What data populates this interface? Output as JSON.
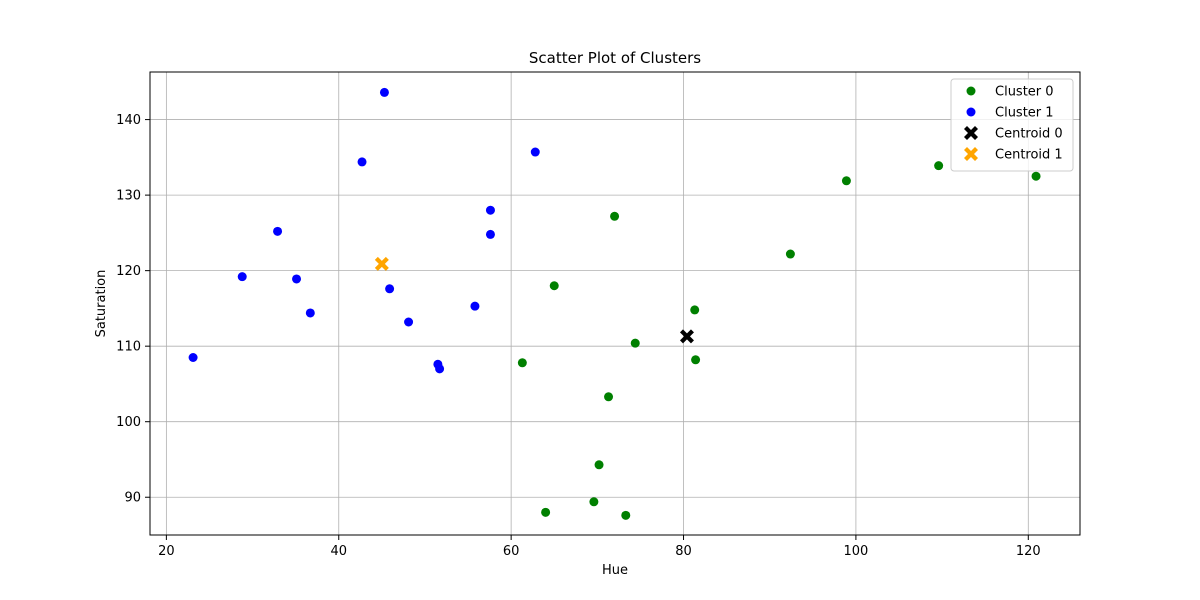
{
  "chart_data": {
    "type": "scatter",
    "title": "Scatter Plot of Clusters",
    "xlabel": "Hue",
    "ylabel": "Saturation",
    "xlim": [
      18.1,
      126.0
    ],
    "ylim": [
      85.0,
      146.3
    ],
    "xticks": [
      20,
      40,
      60,
      80,
      100,
      120
    ],
    "yticks": [
      90,
      100,
      110,
      120,
      130,
      140
    ],
    "grid": true,
    "legend_position": "top-right",
    "series": [
      {
        "name": "Cluster 0",
        "color": "#008000",
        "marker": "circle",
        "points": [
          [
            64.0,
            88.0
          ],
          [
            69.6,
            89.4
          ],
          [
            73.3,
            87.6
          ],
          [
            70.2,
            94.3
          ],
          [
            71.3,
            103.3
          ],
          [
            61.3,
            107.8
          ],
          [
            74.4,
            110.4
          ],
          [
            65.0,
            118.0
          ],
          [
            81.3,
            114.8
          ],
          [
            81.4,
            108.2
          ],
          [
            72.0,
            127.2
          ],
          [
            92.4,
            122.2
          ],
          [
            98.9,
            131.9
          ],
          [
            109.6,
            133.9
          ],
          [
            120.9,
            132.5
          ]
        ]
      },
      {
        "name": "Cluster 1",
        "color": "#0000ff",
        "marker": "circle",
        "points": [
          [
            23.1,
            108.5
          ],
          [
            28.8,
            119.2
          ],
          [
            32.9,
            125.2
          ],
          [
            35.1,
            118.9
          ],
          [
            36.7,
            114.4
          ],
          [
            42.7,
            134.4
          ],
          [
            45.3,
            143.6
          ],
          [
            45.9,
            117.6
          ],
          [
            48.1,
            113.2
          ],
          [
            51.5,
            107.6
          ],
          [
            51.7,
            107.0
          ],
          [
            55.8,
            115.3
          ],
          [
            57.6,
            128.0
          ],
          [
            57.6,
            124.8
          ],
          [
            62.8,
            135.7
          ]
        ]
      },
      {
        "name": "Centroid 0",
        "color": "#000000",
        "marker": "X",
        "points": [
          [
            80.4,
            111.3
          ]
        ]
      },
      {
        "name": "Centroid 1",
        "color": "#ffa500",
        "marker": "X",
        "points": [
          [
            45.0,
            120.9
          ]
        ]
      }
    ]
  }
}
